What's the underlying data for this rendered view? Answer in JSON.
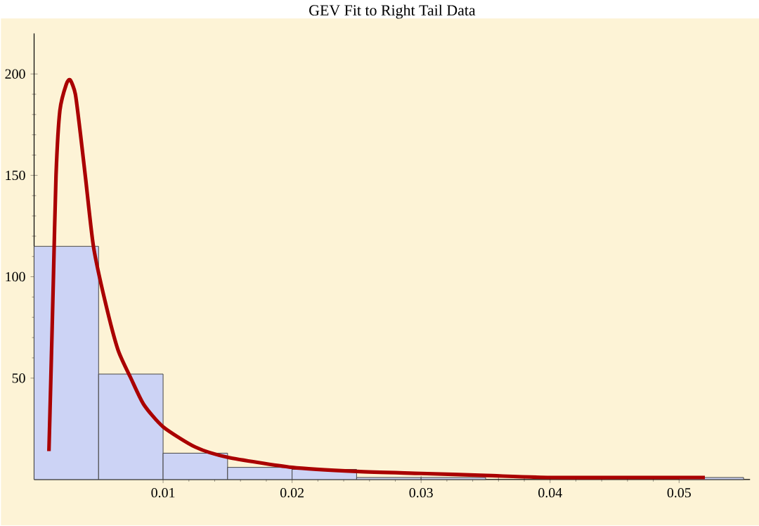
{
  "chart_data": {
    "type": "histogram",
    "title": "GEV Fit to Right Tail Data",
    "bins": [
      0,
      0.005,
      0.01,
      0.015,
      0.02,
      0.025,
      0.03,
      0.035,
      0.04,
      0.045,
      0.05,
      0.055
    ],
    "values": [
      115,
      52,
      13,
      6,
      5,
      1,
      1,
      null,
      null,
      null,
      1
    ],
    "color": "#ccd3f5",
    "series": [
      {
        "type": "line",
        "color": "#aa0000",
        "x": [
          0.00115,
          0.0013,
          0.0015,
          0.0017,
          0.002,
          0.0025,
          0.0028,
          0.0032,
          0.0036,
          0.004,
          0.0046,
          0.0055,
          0.0065,
          0.0075,
          0.0085,
          0.01,
          0.0125,
          0.015,
          0.02,
          0.025,
          0.03,
          0.035,
          0.04,
          0.045,
          0.052
        ],
        "values": [
          14,
          50,
          100,
          150,
          182,
          195,
          197,
          190,
          170,
          148,
          115,
          88,
          64,
          50,
          37,
          26,
          16,
          11,
          6,
          4,
          3,
          2,
          1,
          1,
          1
        ]
      }
    ],
    "xlim": [
      0,
      0.0555
    ],
    "ylim": [
      0,
      220
    ],
    "xticks": [
      0.01,
      0.02,
      0.03,
      0.04,
      0.05
    ],
    "yticks": [
      50,
      100,
      150,
      200
    ],
    "grid": false
  }
}
